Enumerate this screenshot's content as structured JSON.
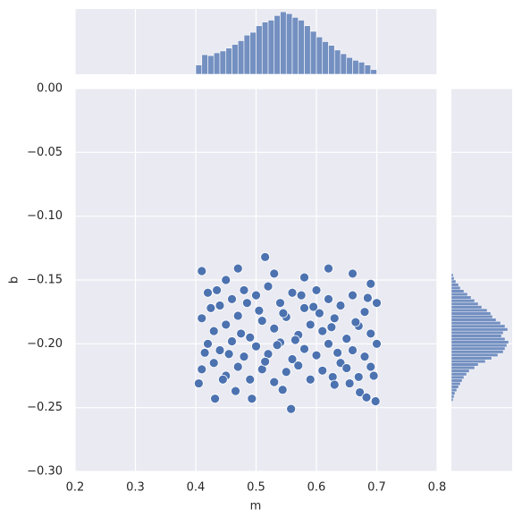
{
  "chart_data": [
    {
      "type": "scatter",
      "xlabel": "m",
      "ylabel": "b",
      "xlim": [
        0.2,
        0.8
      ],
      "ylim": [
        -0.3,
        0
      ],
      "xticks": [
        0.2,
        0.3,
        0.4,
        0.5,
        0.6,
        0.7,
        0.8
      ],
      "yticks": [
        {
          "value": 0,
          "label": "0.00"
        },
        {
          "value": -0.05,
          "label": "−0.05"
        },
        {
          "value": -0.1,
          "label": "−0.10"
        },
        {
          "value": -0.15,
          "label": "−0.15"
        },
        {
          "value": -0.2,
          "label": "−0.20"
        },
        {
          "value": -0.25,
          "label": "−0.25"
        },
        {
          "value": -0.3,
          "label": "−0.30"
        }
      ],
      "grid": true,
      "color": "#4c72b0",
      "x": [
        0.41,
        0.515,
        0.558,
        0.432,
        0.698,
        0.672,
        0.683,
        0.405,
        0.627,
        0.544,
        0.493,
        0.466,
        0.47,
        0.62,
        0.66,
        0.45,
        0.53,
        0.58,
        0.69,
        0.42,
        0.44,
        0.46,
        0.48,
        0.5,
        0.52,
        0.54,
        0.56,
        0.58,
        0.6,
        0.62,
        0.64,
        0.66,
        0.68,
        0.7,
        0.41,
        0.43,
        0.45,
        0.47,
        0.49,
        0.51,
        0.53,
        0.55,
        0.57,
        0.59,
        0.61,
        0.63,
        0.65,
        0.67,
        0.69,
        0.42,
        0.44,
        0.46,
        0.48,
        0.5,
        0.52,
        0.54,
        0.56,
        0.58,
        0.6,
        0.62,
        0.64,
        0.66,
        0.68,
        0.7,
        0.41,
        0.43,
        0.45,
        0.47,
        0.49,
        0.51,
        0.53,
        0.55,
        0.57,
        0.59,
        0.61,
        0.63,
        0.65,
        0.67,
        0.69,
        0.425,
        0.455,
        0.485,
        0.515,
        0.545,
        0.575,
        0.605,
        0.635,
        0.665,
        0.695,
        0.435,
        0.505,
        0.565,
        0.625,
        0.655,
        0.475,
        0.535,
        0.595,
        0.685,
        0.415,
        0.445
      ],
      "y": [
        -0.143,
        -0.132,
        -0.251,
        -0.243,
        -0.245,
        -0.238,
        -0.242,
        -0.231,
        -0.226,
        -0.236,
        -0.243,
        -0.237,
        -0.141,
        -0.141,
        -0.145,
        -0.15,
        -0.145,
        -0.148,
        -0.153,
        -0.16,
        -0.17,
        -0.165,
        -0.158,
        -0.162,
        -0.155,
        -0.168,
        -0.16,
        -0.172,
        -0.158,
        -0.165,
        -0.17,
        -0.162,
        -0.175,
        -0.168,
        -0.18,
        -0.19,
        -0.185,
        -0.178,
        -0.195,
        -0.182,
        -0.188,
        -0.179,
        -0.193,
        -0.185,
        -0.19,
        -0.18,
        -0.196,
        -0.186,
        -0.192,
        -0.2,
        -0.205,
        -0.198,
        -0.21,
        -0.202,
        -0.208,
        -0.199,
        -0.212,
        -0.204,
        -0.209,
        -0.2,
        -0.215,
        -0.205,
        -0.21,
        -0.2,
        -0.22,
        -0.215,
        -0.225,
        -0.218,
        -0.228,
        -0.22,
        -0.23,
        -0.222,
        -0.217,
        -0.228,
        -0.221,
        -0.232,
        -0.219,
        -0.226,
        -0.218,
        -0.172,
        -0.208,
        -0.168,
        -0.214,
        -0.176,
        -0.162,
        -0.176,
        -0.207,
        -0.183,
        -0.225,
        -0.158,
        -0.174,
        -0.197,
        -0.187,
        -0.231,
        -0.192,
        -0.201,
        -0.171,
        -0.164,
        -0.207,
        -0.228
      ]
    },
    {
      "type": "histogram",
      "orientation": "vertical",
      "color": "#4c72b0",
      "xlim": [
        0.2,
        0.8
      ],
      "countlim": [
        0,
        70
      ],
      "bins": [
        0.4,
        0.41,
        0.42,
        0.43,
        0.44,
        0.45,
        0.46,
        0.47,
        0.48,
        0.49,
        0.5,
        0.51,
        0.52,
        0.53,
        0.54,
        0.55,
        0.56,
        0.57,
        0.58,
        0.59,
        0.6,
        0.61,
        0.62,
        0.63,
        0.64,
        0.65,
        0.66,
        0.67,
        0.68,
        0.69,
        0.7
      ],
      "counts": [
        10,
        21,
        20,
        23,
        25,
        28,
        32,
        36,
        42,
        45,
        52,
        56,
        58,
        63,
        67,
        65,
        61,
        58,
        52,
        46,
        40,
        35,
        31,
        26,
        22,
        18,
        15,
        13,
        10,
        5
      ]
    },
    {
      "type": "histogram",
      "orientation": "horizontal",
      "color": "#4c72b0",
      "ylim": [
        -0.3,
        0
      ],
      "countlim": [
        0,
        68
      ],
      "bins": [
        -0.245,
        -0.2425,
        -0.24,
        -0.2375,
        -0.235,
        -0.2325,
        -0.23,
        -0.2275,
        -0.225,
        -0.2225,
        -0.22,
        -0.2175,
        -0.215,
        -0.2125,
        -0.21,
        -0.2075,
        -0.205,
        -0.2025,
        -0.2,
        -0.1975,
        -0.195,
        -0.1925,
        -0.19,
        -0.1875,
        -0.185,
        -0.1825,
        -0.18,
        -0.1775,
        -0.175,
        -0.1725,
        -0.17,
        -0.1675,
        -0.165,
        -0.1625,
        -0.16,
        -0.1575,
        -0.155,
        -0.1525,
        -0.15,
        -0.1475,
        -0.145
      ],
      "counts": [
        2,
        3,
        4,
        6,
        8,
        10,
        12,
        14,
        17,
        20,
        26,
        30,
        38,
        45,
        52,
        58,
        60,
        62,
        64,
        60,
        56,
        58,
        63,
        60,
        55,
        50,
        46,
        44,
        40,
        34,
        30,
        26,
        22,
        18,
        14,
        10,
        8,
        5,
        3,
        2
      ]
    }
  ]
}
